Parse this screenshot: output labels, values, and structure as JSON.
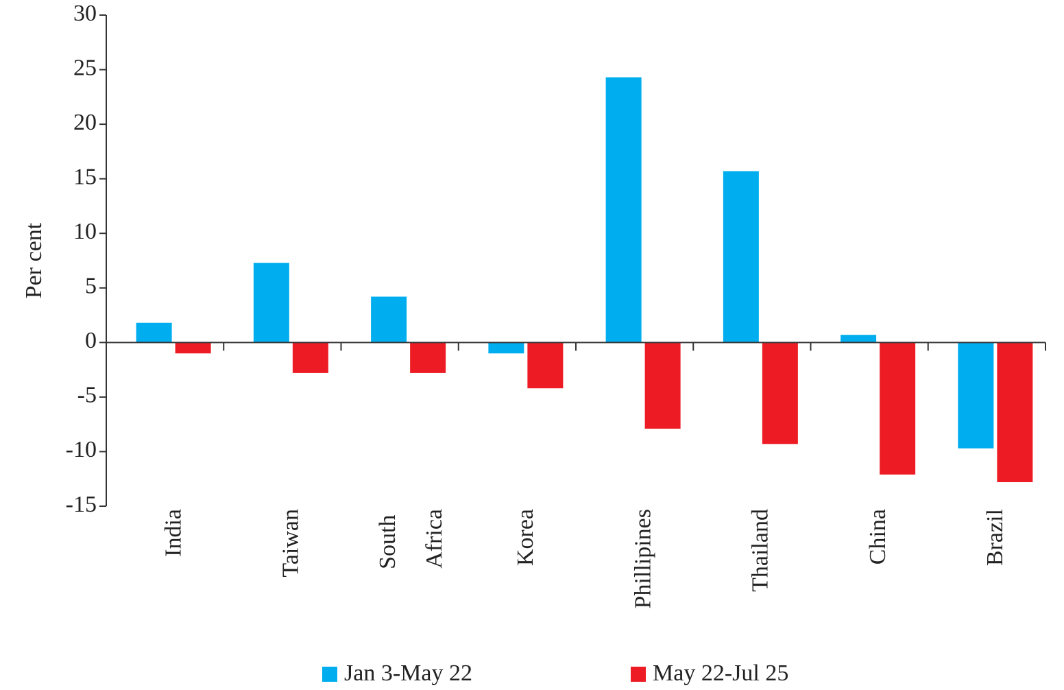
{
  "chart_data": {
    "type": "bar",
    "y_label": "Per cent",
    "categories": [
      "India",
      "Taiwan",
      "South Africa",
      "Korea",
      "Phillipines",
      "Thailand",
      "China",
      "Brazil"
    ],
    "series": [
      {
        "name": "Jan 3-May 22",
        "color": "#00aeef",
        "values": [
          1.8,
          7.3,
          4.2,
          -1,
          24.3,
          15.7,
          0.7,
          -9.7
        ]
      },
      {
        "name": "May 22-Jul 25",
        "color": "#ed1c24",
        "values": [
          -1,
          -2.8,
          -2.8,
          -4.2,
          -7.9,
          -9.3,
          -12.1,
          -12.8
        ]
      }
    ],
    "ylim": [
      -15,
      30
    ],
    "yticks": [
      -15,
      -10,
      -5,
      0,
      5,
      10,
      15,
      20,
      25,
      30
    ],
    "grid": false,
    "legend": "bottom"
  }
}
